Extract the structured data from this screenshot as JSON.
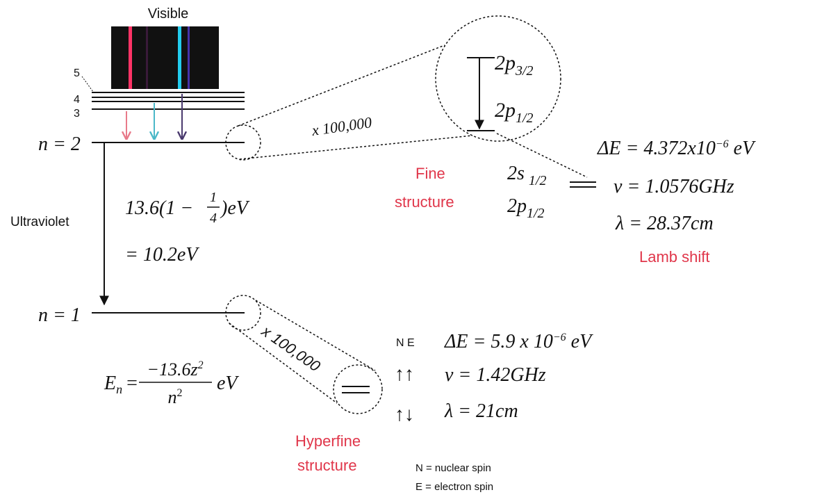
{
  "spectrum": {
    "label": "Visible"
  },
  "levels": {
    "n5": "5",
    "n4": "4",
    "n3": "3",
    "n2": "n = 2",
    "n1": "n = 1"
  },
  "transition": {
    "label": "Ultraviolet",
    "formula": {
      "prefix": "13.6(1 −",
      "numerator": "1",
      "denominator": "4",
      "suffix": ")eV"
    },
    "result": "= 10.2eV"
  },
  "energy_formula": {
    "symbol": "E",
    "subscript": "n",
    "equals": "=",
    "numerator": "−13.6z",
    "numerator_exp": "2",
    "denominator": "n",
    "denominator_exp": "2",
    "unit": "eV"
  },
  "fine": {
    "magnification": "x 100,000",
    "upper": {
      "main": "2p",
      "sub": "3/2"
    },
    "lower": {
      "main": "2p",
      "sub": "1/2"
    },
    "label": [
      "Fine",
      "structure"
    ],
    "lamb_levels": [
      {
        "main": "2s",
        "sub": "1/2"
      },
      {
        "main": "2p",
        "sub": "1/2"
      }
    ],
    "lamb_values": {
      "delta_e": {
        "main": "ΔE = 4.372x10",
        "exp": "−6",
        "unit": " eV"
      },
      "frequency": "ν = 1.0576GHz",
      "wavelength": "λ = 28.37cm"
    },
    "lamb_label": "Lamb shift"
  },
  "hyperfine": {
    "magnification": "x 100,000",
    "spin_header": "N E",
    "parallel": "↑↑",
    "antiparallel": "↑↓",
    "values": {
      "delta_e": {
        "main": "ΔE = 5.9 x 10",
        "exp": "−6",
        "unit": " eV"
      },
      "frequency": "ν = 1.42GHz",
      "wavelength": "λ = 21cm"
    },
    "label": [
      "Hyperfine",
      "structure"
    ],
    "legend": [
      "N = nuclear spin",
      "E = electron spin"
    ]
  }
}
